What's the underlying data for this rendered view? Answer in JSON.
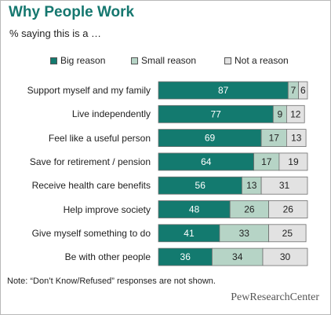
{
  "title": "Why People Work",
  "subtitle": "% saying this is a …",
  "note": "Note: “Don’t Know/Refused” responses are not shown.",
  "source_logo": "PewResearchCenter",
  "colors": {
    "big": "#137a6f",
    "small": "#b6d4c6",
    "not": "#e2e2e2",
    "title": "#15776f"
  },
  "chart_data": {
    "type": "bar",
    "orientation": "horizontal",
    "stacked": true,
    "categories": [
      "Support myself and my family",
      "Live independently",
      "Feel like a useful person",
      "Save for retirement / pension",
      "Receive health care benefits",
      "Help improve society",
      "Give myself something to do",
      "Be with other people"
    ],
    "series": [
      {
        "name": "Big reason",
        "values": [
          87,
          77,
          69,
          64,
          56,
          48,
          41,
          36
        ]
      },
      {
        "name": "Small reason",
        "values": [
          7,
          9,
          17,
          17,
          13,
          26,
          33,
          34
        ]
      },
      {
        "name": "Not a reason",
        "values": [
          6,
          12,
          13,
          19,
          31,
          26,
          25,
          30
        ]
      }
    ],
    "xlim": [
      0,
      100
    ],
    "grid": false,
    "legend_position": "top"
  }
}
